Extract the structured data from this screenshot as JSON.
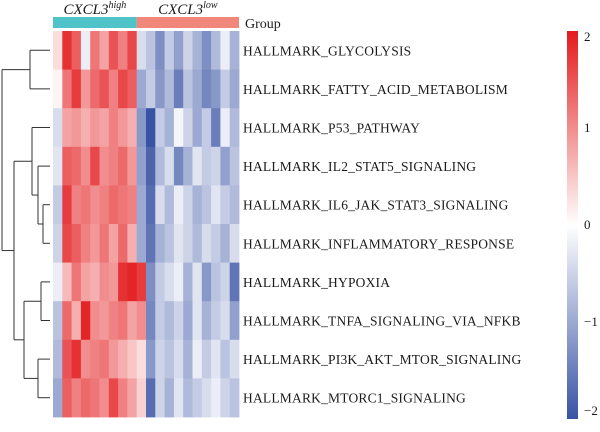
{
  "chart_data": {
    "type": "heatmap",
    "groups": [
      {
        "label": "CXCL3",
        "superscript": "high",
        "color": "#4fc3c8",
        "n": 9
      },
      {
        "label": "CXCL3",
        "superscript": "low",
        "color": "#f0877a",
        "n": 11
      }
    ],
    "group_legend_label": "Group",
    "rows": [
      "HALLMARK_GLYCOLYSIS",
      "HALLMARK_FATTY_ACID_METABOLISM",
      "HALLMARK_P53_PATHWAY",
      "HALLMARK_IL2_STAT5_SIGNALING",
      "HALLMARK_IL6_JAK_STAT3_SIGNALING",
      "HALLMARK_INFLAMMATORY_RESPONSE",
      "HALLMARK_HYPOXIA",
      "HALLMARK_TNFA_SIGNALING_VIA_NFKB",
      "HALLMARK_PI3K_AKT_MTOR_SIGNALING",
      "HALLMARK_MTORC1_SIGNALING"
    ],
    "values": [
      [
        0.3,
        1.8,
        1.4,
        -0.2,
        1.2,
        0.8,
        1.5,
        1.1,
        1.6,
        -0.4,
        -0.7,
        -1.3,
        -0.6,
        -1.1,
        -0.5,
        -0.9,
        -1.3,
        -0.8,
        -0.2,
        -0.9
      ],
      [
        0.1,
        1.2,
        1.7,
        0.9,
        1.3,
        1.5,
        1.1,
        1.6,
        1.4,
        -1.0,
        -0.6,
        -1.2,
        -0.8,
        -1.5,
        -0.7,
        -1.0,
        -1.4,
        -1.2,
        -0.6,
        -1.0
      ],
      [
        -0.4,
        0.8,
        0.9,
        0.7,
        0.9,
        0.8,
        1.1,
        0.9,
        0.7,
        -1.2,
        -2.0,
        -0.6,
        -0.9,
        -0.1,
        -0.5,
        -1.0,
        -0.6,
        -1.5,
        -0.2,
        -0.8
      ],
      [
        -0.3,
        1.4,
        1.3,
        1.0,
        1.6,
        1.0,
        1.1,
        1.3,
        0.9,
        -1.1,
        -1.8,
        -0.8,
        -0.4,
        -1.4,
        -0.9,
        -0.3,
        -0.6,
        -0.5,
        -1.1,
        -0.7
      ],
      [
        -0.6,
        1.7,
        1.1,
        1.2,
        1.0,
        1.1,
        1.3,
        1.2,
        1.1,
        -1.0,
        -1.7,
        -0.4,
        -0.8,
        -0.2,
        -0.5,
        -0.9,
        -0.7,
        -0.3,
        -0.6,
        -0.8
      ],
      [
        -0.5,
        1.6,
        1.4,
        1.1,
        0.9,
        1.2,
        0.8,
        1.3,
        0.7,
        -1.0,
        -1.6,
        -0.9,
        -0.7,
        -0.3,
        -0.5,
        -0.8,
        -0.4,
        -0.6,
        -0.9,
        -0.4
      ],
      [
        -0.2,
        0.6,
        1.2,
        0.8,
        0.7,
        1.0,
        0.9,
        1.8,
        1.9,
        1.7,
        -1.3,
        -0.6,
        -0.4,
        -0.2,
        -0.9,
        -0.3,
        -1.2,
        -0.7,
        -0.5,
        -1.6
      ],
      [
        -0.7,
        1.3,
        0.7,
        1.9,
        1.0,
        0.9,
        1.1,
        1.2,
        0.8,
        1.0,
        -1.4,
        -0.6,
        -0.8,
        -0.5,
        -1.0,
        -0.3,
        -0.9,
        -0.6,
        -0.4,
        -1.1
      ],
      [
        -0.8,
        1.5,
        1.8,
        1.0,
        1.1,
        1.2,
        0.9,
        0.7,
        0.5,
        0.3,
        -1.2,
        -0.5,
        -0.7,
        -0.4,
        -0.9,
        -0.2,
        -0.6,
        -0.3,
        -0.7,
        -0.4
      ],
      [
        -1.0,
        1.4,
        1.1,
        1.3,
        1.2,
        1.0,
        1.6,
        1.1,
        0.8,
        0.4,
        -1.7,
        -0.5,
        -0.9,
        -0.3,
        -0.8,
        -0.6,
        -0.4,
        -0.2,
        -0.5,
        -0.7
      ]
    ],
    "color_scale": {
      "min": -2,
      "max": 2,
      "low_color": "#3953a4",
      "mid_color": "#ffffff",
      "high_color": "#e31a1c"
    },
    "legend_ticks": [
      2,
      1,
      0,
      -1,
      -2
    ],
    "legend_tick_labels": [
      "2",
      "1",
      "0",
      "−1",
      "−2"
    ],
    "row_dendrogram": true,
    "grid": false
  }
}
